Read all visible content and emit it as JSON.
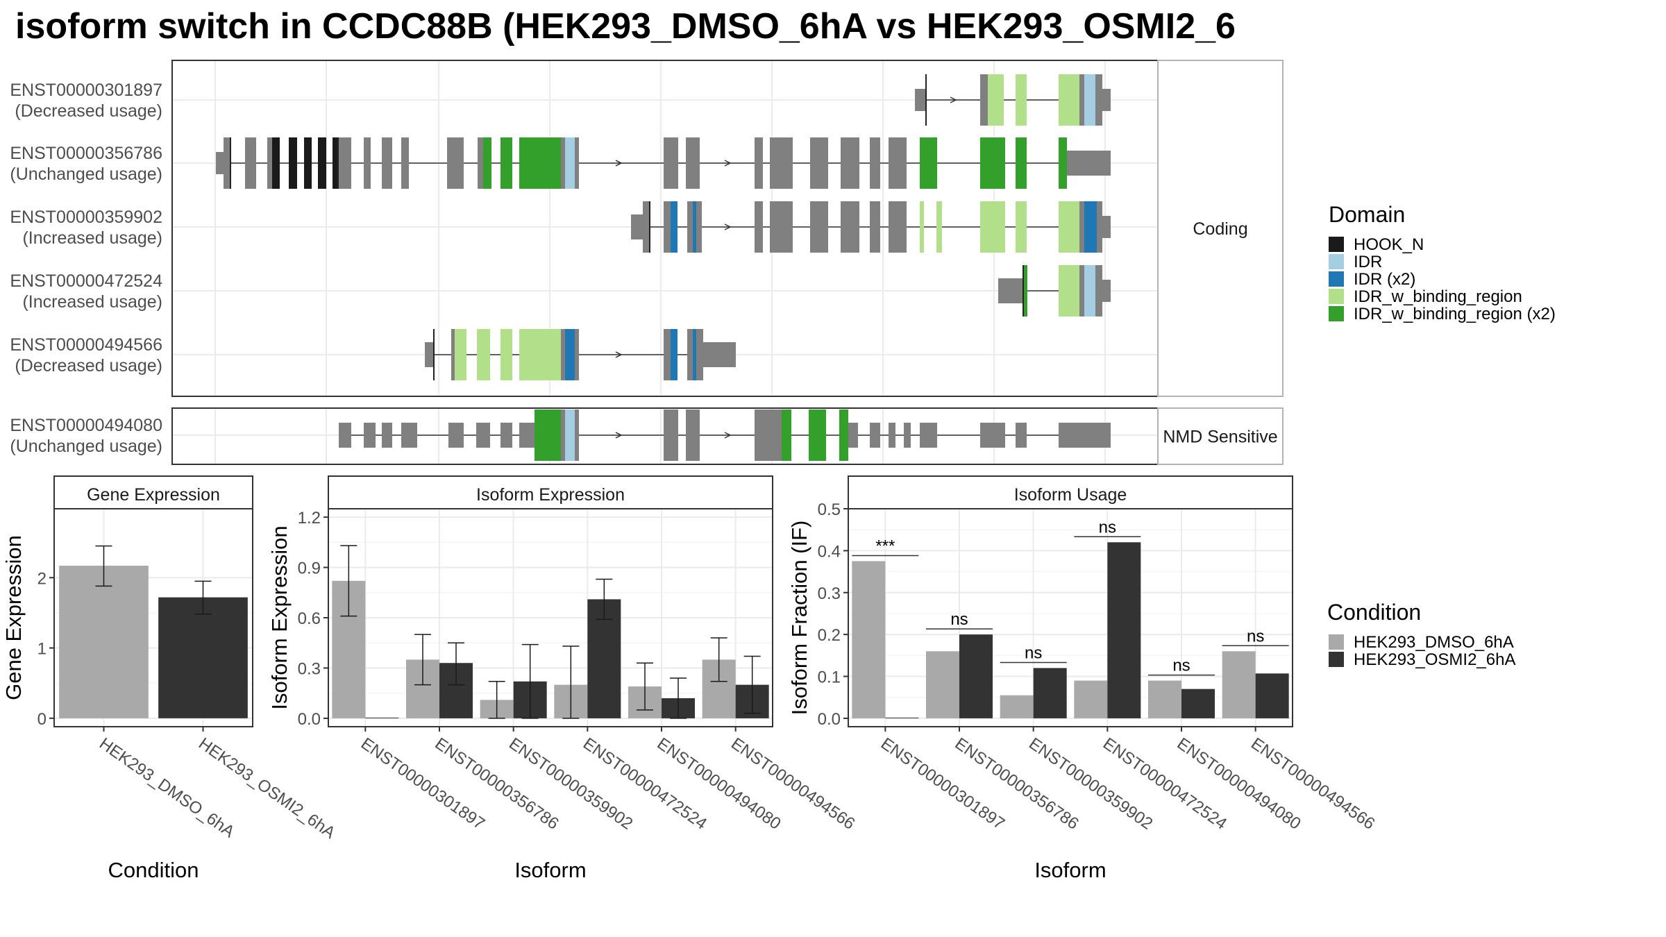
{
  "title": "isoform switch in CCDC88B (HEK293_DMSO_6hA vs HEK293_OSMI2_6",
  "colors": {
    "exon": "#808080",
    "HOOK_N": "#1a1a1a",
    "IDR": "#a6cee3",
    "IDR (x2)": "#1f78b4",
    "IDR_w_binding_region": "#b2df8a",
    "IDR_w_binding_region (x2)": "#33a02c",
    "cond1": "#a9a9a9",
    "cond2": "#333333",
    "panel_border": "#333333",
    "strip_border": "#b3b3b3",
    "grid_major": "#ebebeb",
    "grid_minor": "#f5f5f5"
  },
  "transcripts": {
    "facet_labels": [
      "Coding",
      "NMD Sensitive"
    ],
    "rows": [
      {
        "id": "ENST00000301897",
        "usage": "(Decreased usage)",
        "facet": "Coding"
      },
      {
        "id": "ENST00000356786",
        "usage": "(Unchanged usage)",
        "facet": "Coding"
      },
      {
        "id": "ENST00000359902",
        "usage": "(Increased usage)",
        "facet": "Coding"
      },
      {
        "id": "ENST00000472524",
        "usage": "(Increased usage)",
        "facet": "Coding"
      },
      {
        "id": "ENST00000494566",
        "usage": "(Decreased usage)",
        "facet": "Coding"
      },
      {
        "id": "ENST00000494080",
        "usage": "(Unchanged usage)",
        "facet": "NMD Sensitive"
      }
    ]
  },
  "legend_domain": {
    "title": "Domain",
    "items": [
      "HOOK_N",
      "IDR",
      "IDR (x2)",
      "IDR_w_binding_region",
      "IDR_w_binding_region (x2)"
    ]
  },
  "legend_condition": {
    "title": "Condition",
    "items": [
      "HEK293_DMSO_6hA",
      "HEK293_OSMI2_6hA"
    ]
  },
  "chart_data": [
    {
      "type": "bar",
      "title": "Gene Expression",
      "xlabel": "Condition",
      "ylabel": "Gene Expression",
      "categories": [
        "HEK293_DMSO_6hA",
        "HEK293_OSMI2_6hA"
      ],
      "values": [
        2.17,
        1.72
      ],
      "error_low": [
        1.88,
        1.48
      ],
      "error_high": [
        2.45,
        1.95
      ],
      "yticks": [
        "0",
        "1",
        "2"
      ],
      "ylim": [
        -0.12,
        2.98
      ]
    },
    {
      "type": "bar",
      "title": "Isoform Expression",
      "xlabel": "Isoform",
      "ylabel": "Isoform Expression",
      "categories": [
        "ENST00000301897",
        "ENST00000356786",
        "ENST00000359902",
        "ENST00000472524",
        "ENST00000494080",
        "ENST00000494566"
      ],
      "series": [
        {
          "name": "HEK293_DMSO_6hA",
          "values": [
            0.82,
            0.35,
            0.11,
            0.2,
            0.19,
            0.35
          ],
          "error_low": [
            0.61,
            0.2,
            0.0,
            0.0,
            0.05,
            0.22
          ],
          "error_high": [
            1.03,
            0.5,
            0.22,
            0.43,
            0.33,
            0.48
          ]
        },
        {
          "name": "HEK293_OSMI2_6hA",
          "values": [
            0.0,
            0.33,
            0.22,
            0.71,
            0.12,
            0.2
          ],
          "error_low": [
            0.0,
            0.2,
            0.0,
            0.59,
            0.0,
            0.03
          ],
          "error_high": [
            0.0,
            0.45,
            0.44,
            0.83,
            0.24,
            0.37
          ]
        }
      ],
      "yticks": [
        "0.0",
        "0.3",
        "0.6",
        "0.9",
        "1.2"
      ],
      "ylim": [
        -0.05,
        1.25
      ]
    },
    {
      "type": "bar",
      "title": "Isoform Usage",
      "xlabel": "Isoform",
      "ylabel": "Isoform Fraction (IF)",
      "categories": [
        "ENST00000301897",
        "ENST00000356786",
        "ENST00000359902",
        "ENST00000472524",
        "ENST00000494080",
        "ENST00000494566"
      ],
      "series": [
        {
          "name": "HEK293_DMSO_6hA",
          "values": [
            0.375,
            0.16,
            0.055,
            0.09,
            0.09,
            0.16
          ]
        },
        {
          "name": "HEK293_OSMI2_6hA",
          "values": [
            0.0,
            0.2,
            0.12,
            0.42,
            0.07,
            0.107
          ]
        }
      ],
      "significance": [
        "***",
        "ns",
        "ns",
        "ns",
        "ns",
        "ns"
      ],
      "yticks": [
        "0.0",
        "0.1",
        "0.2",
        "0.3",
        "0.4",
        "0.5"
      ],
      "ylim": [
        -0.02,
        0.5
      ]
    }
  ]
}
